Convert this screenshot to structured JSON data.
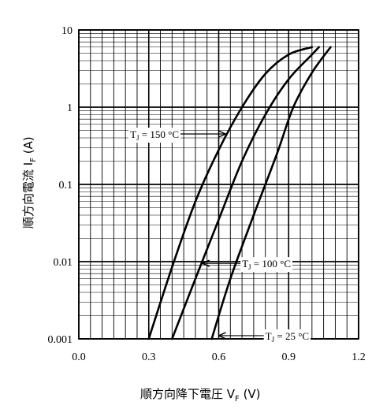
{
  "chart_data": {
    "type": "line",
    "x_scale": "linear",
    "y_scale": "log",
    "xlim": [
      0.0,
      1.2
    ],
    "ylim": [
      0.001,
      10
    ],
    "x_ticks": [
      "0.0",
      "0.3",
      "0.6",
      "0.9",
      "1.2"
    ],
    "y_ticks": [
      "10",
      "1",
      "0.1",
      "0.01",
      "0.001"
    ],
    "xlabel": "順方向降下電圧  V",
    "xlabel_sub": "F",
    "xlabel_unit": " (V)",
    "ylabel": "順方向電流  I",
    "ylabel_sub": "F",
    "ylabel_unit": " (A)",
    "grid": true,
    "series": [
      {
        "name": "T_J = 150 °C",
        "label_text": "T",
        "label_sub": "J",
        "label_rest": " = 150 °C",
        "points": [
          [
            0.3,
            0.001
          ],
          [
            0.4,
            0.0085
          ],
          [
            0.5,
            0.06
          ],
          [
            0.6,
            0.28
          ],
          [
            0.7,
            1.0
          ],
          [
            0.8,
            2.7
          ],
          [
            0.9,
            4.8
          ],
          [
            1.0,
            6.0
          ]
        ]
      },
      {
        "name": "T_J = 100 °C",
        "label_text": "T",
        "label_sub": "J",
        "label_rest": " = 100 °C",
        "points": [
          [
            0.4,
            0.001
          ],
          [
            0.5,
            0.006
          ],
          [
            0.6,
            0.035
          ],
          [
            0.7,
            0.2
          ],
          [
            0.8,
            0.8
          ],
          [
            0.9,
            2.3
          ],
          [
            1.0,
            4.8
          ],
          [
            1.03,
            6.0
          ]
        ]
      },
      {
        "name": "T_J = 25 °C",
        "label_text": "T",
        "label_sub": "J",
        "label_rest": " = 25 °C",
        "points": [
          [
            0.57,
            0.001
          ],
          [
            0.65,
            0.006
          ],
          [
            0.75,
            0.04
          ],
          [
            0.85,
            0.25
          ],
          [
            0.92,
            1.0
          ],
          [
            1.0,
            2.8
          ],
          [
            1.08,
            6.0
          ]
        ]
      }
    ]
  }
}
